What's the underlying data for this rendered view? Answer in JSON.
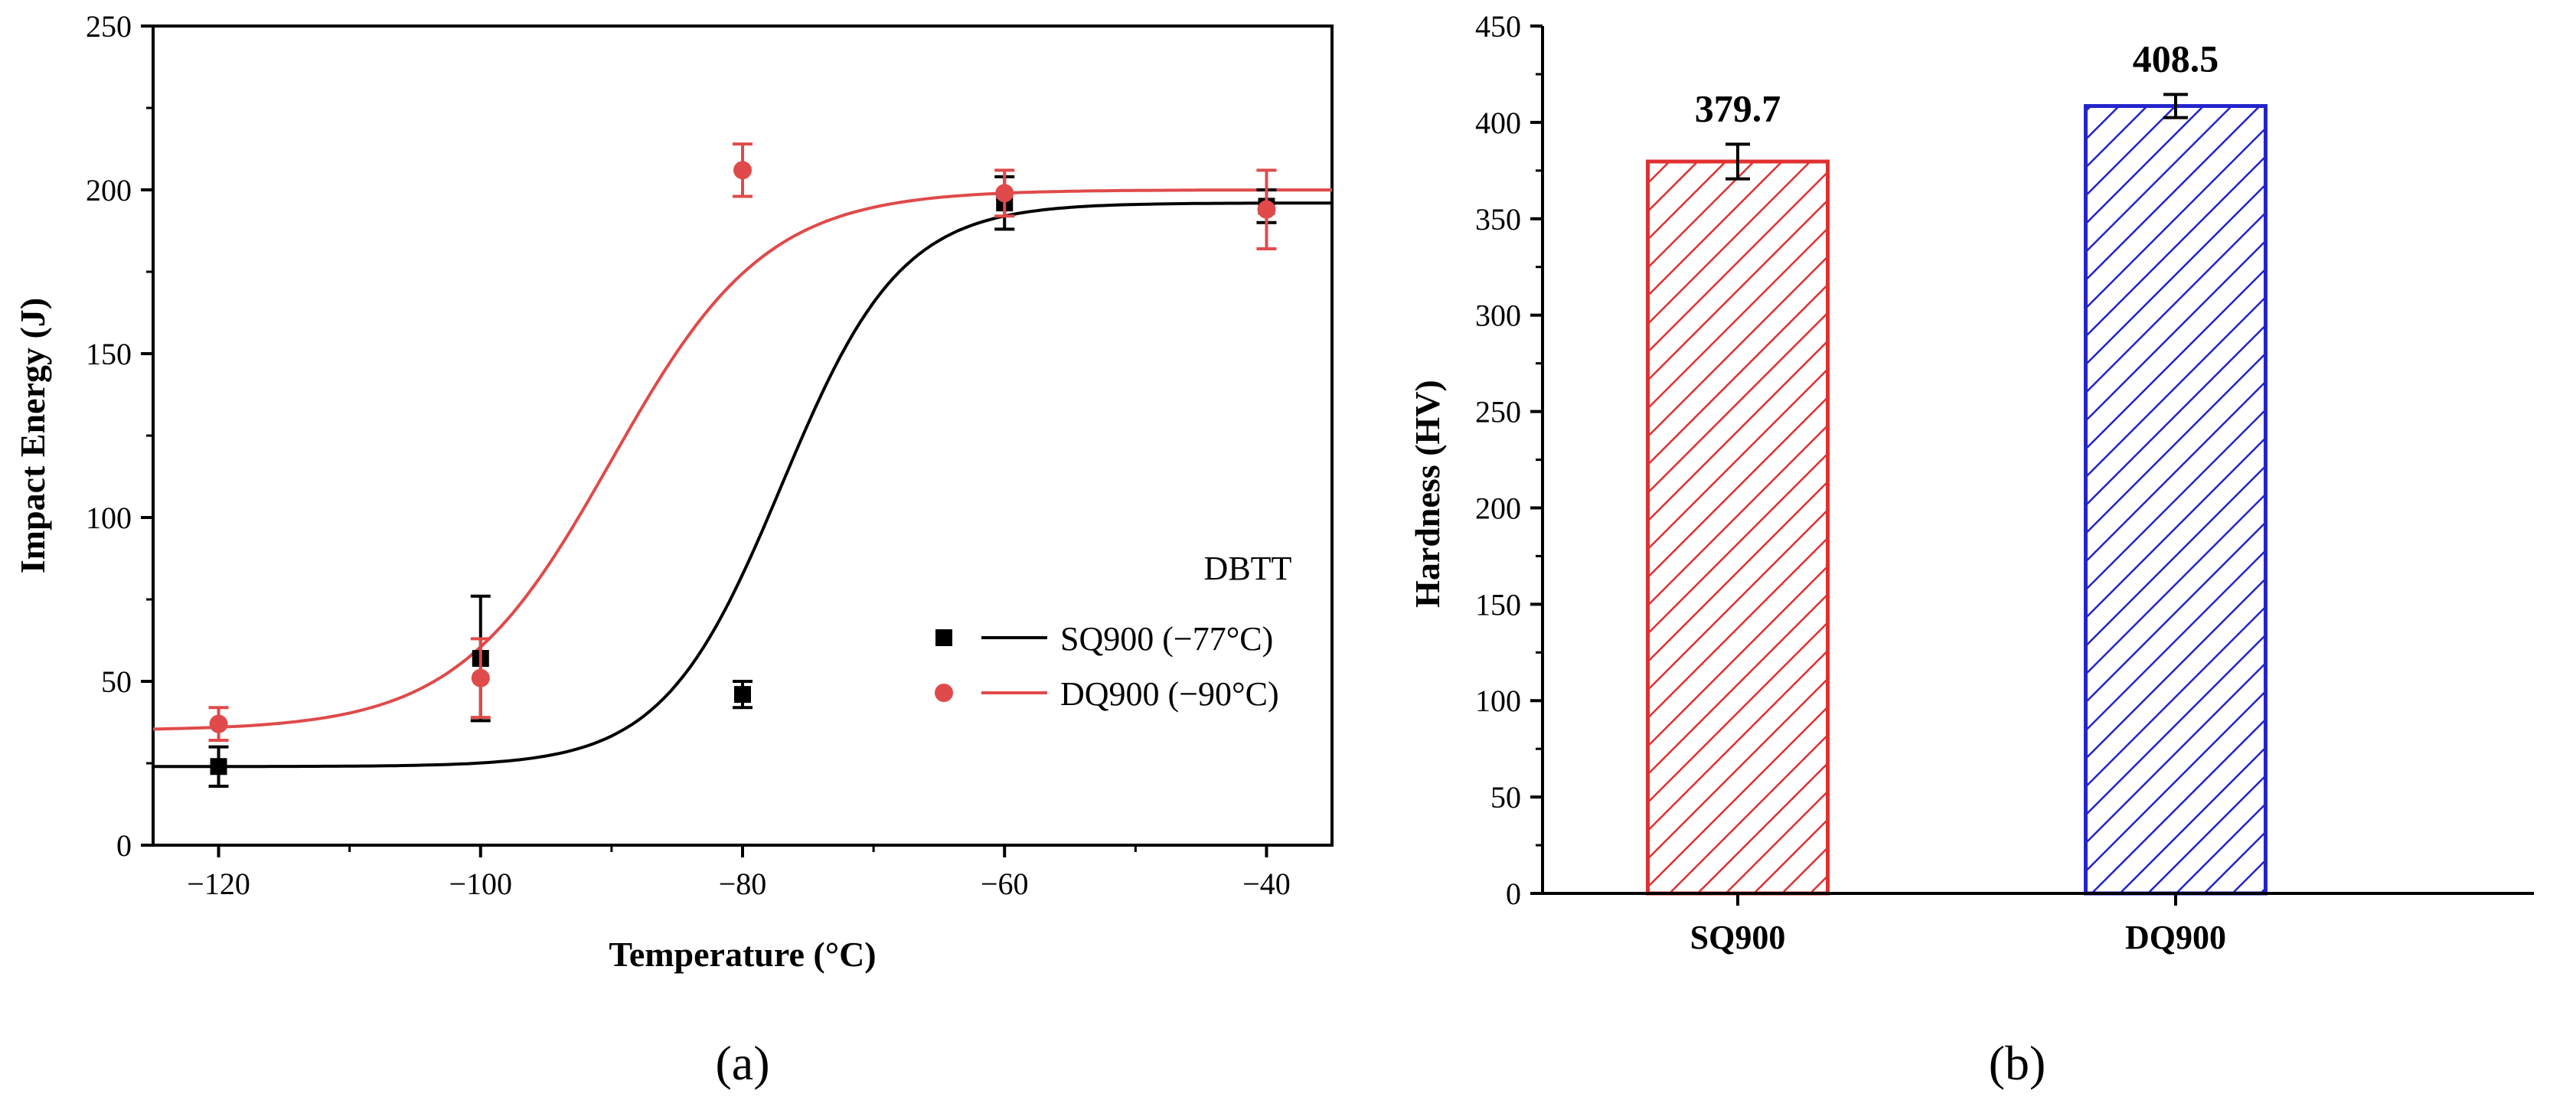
{
  "chart_data": [
    {
      "panel_label": "(a)",
      "type": "scatter",
      "xlabel": "Temperature (°C)",
      "ylabel": "Impact Energy (J)",
      "xlim": [
        -125,
        -35
      ],
      "ylim": [
        0,
        250
      ],
      "xticks": [
        -120,
        -100,
        -80,
        -60,
        -40
      ],
      "xtick_labels": [
        "−120",
        "−100",
        "−80",
        "−60",
        "−40"
      ],
      "yticks": [
        0,
        50,
        100,
        150,
        200,
        250
      ],
      "ytick_labels": [
        "0",
        "50",
        "100",
        "150",
        "200",
        "250"
      ],
      "legend_title": "DBTT",
      "legend_position": "center-right",
      "series": [
        {
          "name": "SQ900 (−77°C)",
          "color": "#000000",
          "marker": "square",
          "x": [
            -120,
            -100,
            -80,
            -60,
            -40
          ],
          "y": [
            24,
            57,
            46,
            196,
            195
          ],
          "err": [
            6,
            19,
            4,
            8,
            5
          ],
          "fit": {
            "lower": 24,
            "upper": 196,
            "x0": -77,
            "k": 0.22
          }
        },
        {
          "name": "DQ900 (−90°C)",
          "color": "#e04a4a",
          "marker": "circle",
          "x": [
            -120,
            -100,
            -80,
            -60,
            -40
          ],
          "y": [
            37,
            51,
            206,
            199,
            194
          ],
          "err": [
            5,
            12,
            8,
            7,
            12
          ],
          "fit": {
            "lower": 35,
            "upper": 200,
            "x0": -90,
            "k": 0.17
          }
        }
      ]
    },
    {
      "panel_label": "(b)",
      "type": "bar",
      "ylabel": "Hardness (HV)",
      "categories": [
        "SQ900",
        "DQ900"
      ],
      "values": [
        379.7,
        408.5
      ],
      "value_labels": [
        "379.7",
        "408.5"
      ],
      "err": [
        9,
        6
      ],
      "colors": [
        "#e03030",
        "#2424cc"
      ],
      "pattern": "diagonal-hatch",
      "ylim": [
        0,
        450
      ],
      "yticks": [
        0,
        50,
        100,
        150,
        200,
        250,
        300,
        350,
        400,
        450
      ],
      "ytick_labels": [
        "0",
        "50",
        "100",
        "150",
        "200",
        "250",
        "300",
        "350",
        "400",
        "450"
      ]
    }
  ]
}
